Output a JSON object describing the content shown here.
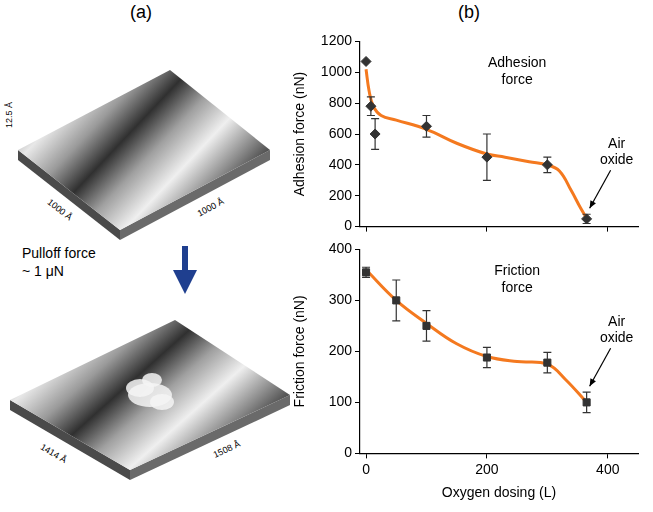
{
  "panel_a": {
    "letter": "(a)",
    "top_image": {
      "z_label": "12.5 Å",
      "x_label": "1000 Å",
      "y_label": "1000 Å"
    },
    "arrow_label": [
      "Pulloff force",
      "~ 1 μN"
    ],
    "bottom_image": {
      "x_label": "1414 Å",
      "y_label": "1508 Å"
    }
  },
  "panel_b": {
    "letter": "(b)"
  },
  "chart_data": [
    {
      "type": "scatter",
      "ylabel": "Adhesion force (nN)",
      "text_label": "Adhesion force",
      "arrow_label": "Air oxide",
      "tick_labels": "y",
      "grid": false,
      "xlim": [
        -10,
        450
      ],
      "xticks": [
        0,
        200,
        400
      ],
      "ylim": [
        0,
        1200
      ],
      "yticks": [
        0,
        200,
        400,
        600,
        800,
        1000,
        1200
      ],
      "series": [
        {
          "type": "line",
          "line_style": "solid",
          "color": "#f4791f",
          "x": [
            0,
            5,
            12,
            25,
            50,
            100,
            150,
            200,
            230,
            270,
            300,
            320,
            340,
            355,
            365
          ],
          "values": [
            1020,
            880,
            780,
            720,
            690,
            630,
            540,
            470,
            450,
            420,
            400,
            360,
            230,
            120,
            55
          ]
        },
        {
          "type": "scatter",
          "marker": "diamond",
          "color": "#333333",
          "x": [
            0,
            8,
            15,
            100,
            200,
            300,
            365
          ],
          "values": [
            1070,
            780,
            600,
            650,
            450,
            400,
            50
          ],
          "errors": [
            null,
            60,
            100,
            70,
            150,
            50,
            30
          ]
        }
      ]
    },
    {
      "type": "scatter",
      "ylabel": "Friction force (nN)",
      "xlabel": "Oxygen dosing (L)",
      "text_label": "Friction force",
      "arrow_label": "Air oxide",
      "grid": false,
      "xlim": [
        -10,
        450
      ],
      "xticks": [
        0,
        200,
        400
      ],
      "ylim": [
        0,
        400
      ],
      "yticks": [
        0,
        100,
        200,
        300,
        400
      ],
      "series": [
        {
          "type": "line",
          "line_style": "solid",
          "color": "#f4791f",
          "x": [
            0,
            50,
            100,
            150,
            200,
            250,
            300,
            330,
            365
          ],
          "values": [
            360,
            300,
            255,
            215,
            190,
            180,
            175,
            145,
            100
          ]
        },
        {
          "type": "scatter",
          "marker": "square",
          "color": "#333333",
          "x": [
            0,
            50,
            100,
            200,
            300,
            365
          ],
          "values": [
            355,
            300,
            250,
            188,
            178,
            100
          ],
          "errors": [
            10,
            40,
            30,
            20,
            20,
            20
          ]
        }
      ]
    }
  ]
}
